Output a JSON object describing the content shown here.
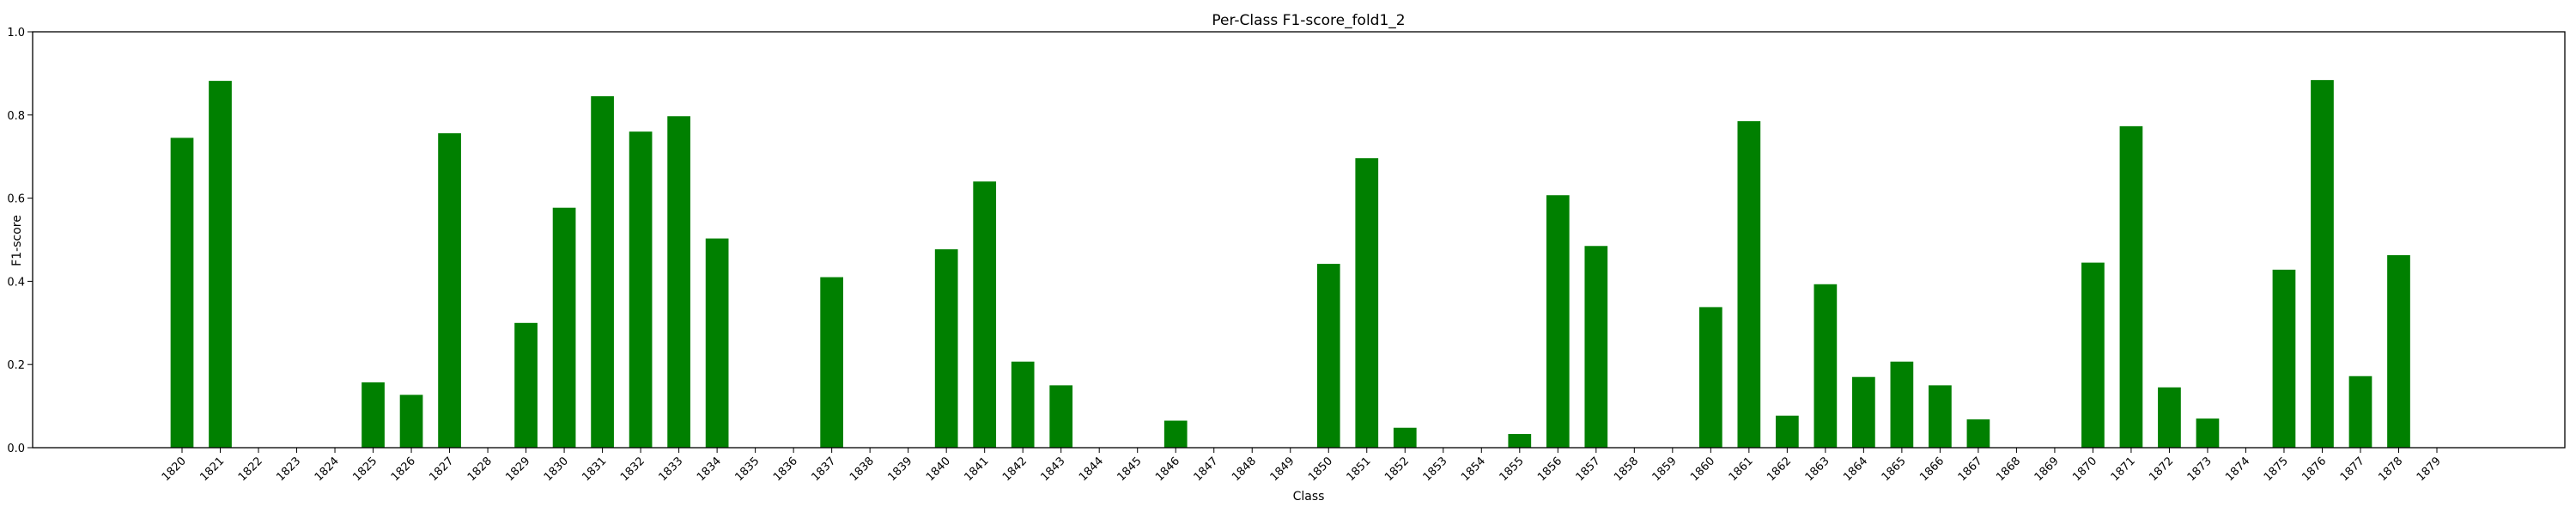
{
  "chart_data": {
    "type": "bar",
    "title": "Per-Class F1-score_fold1_2",
    "xlabel": "Class",
    "ylabel": "F1-score",
    "ylim": [
      0.0,
      1.0
    ],
    "yticks": [
      "0.0",
      "0.2",
      "0.4",
      "0.6",
      "0.8",
      "1.0"
    ],
    "bar_color": "#008000",
    "grid": false,
    "categories": [
      "1820",
      "1821",
      "1822",
      "1823",
      "1824",
      "1825",
      "1826",
      "1827",
      "1828",
      "1829",
      "1830",
      "1831",
      "1832",
      "1833",
      "1834",
      "1835",
      "1836",
      "1837",
      "1838",
      "1839",
      "1840",
      "1841",
      "1842",
      "1843",
      "1844",
      "1845",
      "1846",
      "1847",
      "1848",
      "1849",
      "1850",
      "1851",
      "1852",
      "1853",
      "1854",
      "1855",
      "1856",
      "1857",
      "1858",
      "1859",
      "1860",
      "1861",
      "1862",
      "1863",
      "1864",
      "1865",
      "1866",
      "1867",
      "1868",
      "1869",
      "1870",
      "1871",
      "1872",
      "1873",
      "1874",
      "1875",
      "1876",
      "1877",
      "1878",
      "1879"
    ],
    "values": [
      0.745,
      0.882,
      0.0,
      0.0,
      0.0,
      0.157,
      0.127,
      0.756,
      0.0,
      0.3,
      0.577,
      0.845,
      0.76,
      0.797,
      0.503,
      0.0,
      0.0,
      0.41,
      0.0,
      0.0,
      0.477,
      0.64,
      0.207,
      0.15,
      0.0,
      0.0,
      0.065,
      0.0,
      0.0,
      0.0,
      0.442,
      0.696,
      0.048,
      0.0,
      0.0,
      0.033,
      0.607,
      0.485,
      0.0,
      0.0,
      0.338,
      0.785,
      0.077,
      0.393,
      0.17,
      0.207,
      0.15,
      0.068,
      0.0,
      0.0,
      0.445,
      0.773,
      0.145,
      0.07,
      0.0,
      0.428,
      0.884,
      0.172,
      0.463,
      0.0
    ]
  }
}
